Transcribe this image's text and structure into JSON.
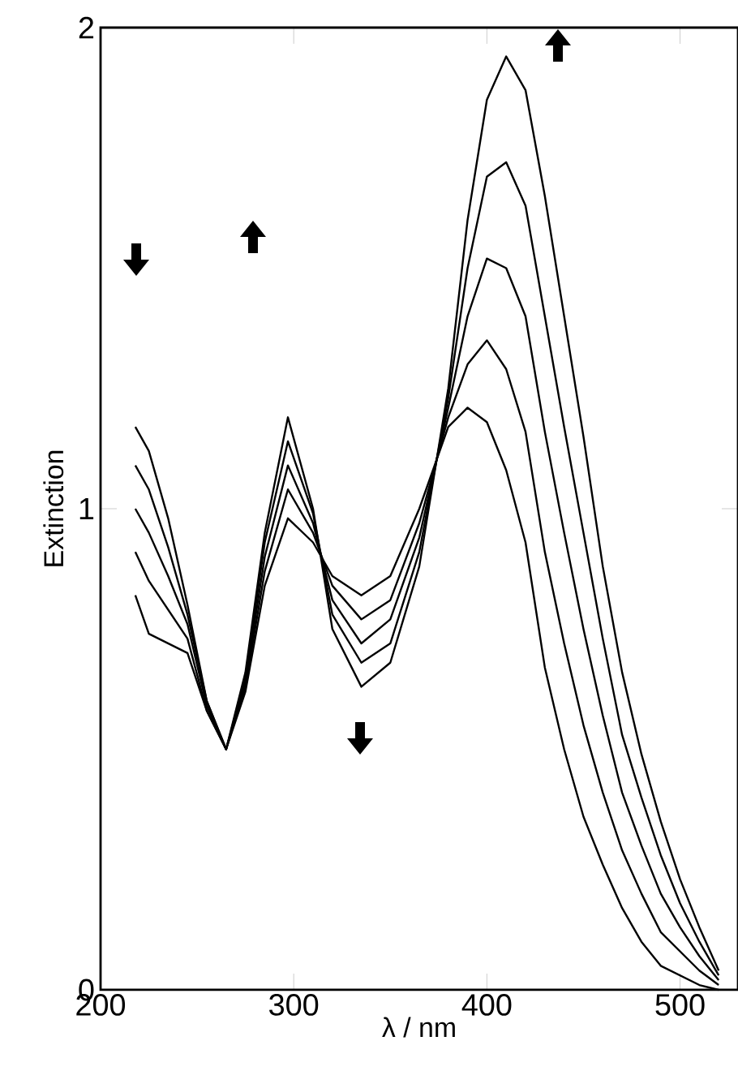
{
  "chart_data": {
    "type": "line",
    "xlabel": "λ / nm",
    "ylabel": "Extinction",
    "xlim": [
      200,
      530
    ],
    "ylim": [
      0,
      2
    ],
    "xticks": [
      200,
      300,
      400,
      500
    ],
    "yticks": [
      0,
      1,
      2
    ],
    "grid": false,
    "marker": "none",
    "line_style": "solid",
    "x": [
      218,
      225,
      235,
      245,
      255,
      265,
      275,
      285,
      297,
      310,
      320,
      335,
      350,
      365,
      380,
      390,
      400,
      410,
      420,
      430,
      440,
      450,
      460,
      470,
      480,
      490,
      500,
      510,
      520
    ],
    "series": [
      {
        "color": "#000000",
        "values": [
          1.17,
          1.12,
          0.98,
          0.8,
          0.6,
          0.5,
          0.62,
          0.84,
          0.98,
          0.93,
          0.86,
          0.82,
          0.86,
          1.0,
          1.17,
          1.21,
          1.18,
          1.08,
          0.93,
          0.67,
          0.5,
          0.36,
          0.26,
          0.17,
          0.1,
          0.05,
          0.03,
          0.01,
          0.0
        ]
      },
      {
        "color": "#000000",
        "values": [
          1.09,
          1.04,
          0.92,
          0.78,
          0.6,
          0.5,
          0.63,
          0.87,
          1.04,
          0.95,
          0.84,
          0.77,
          0.81,
          0.97,
          1.19,
          1.3,
          1.35,
          1.29,
          1.16,
          0.91,
          0.72,
          0.55,
          0.41,
          0.29,
          0.2,
          0.12,
          0.08,
          0.04,
          0.01
        ]
      },
      {
        "color": "#000000",
        "values": [
          1.0,
          0.95,
          0.86,
          0.76,
          0.59,
          0.5,
          0.64,
          0.9,
          1.09,
          0.97,
          0.81,
          0.72,
          0.77,
          0.94,
          1.21,
          1.4,
          1.52,
          1.5,
          1.4,
          1.16,
          0.95,
          0.75,
          0.57,
          0.41,
          0.3,
          0.2,
          0.13,
          0.07,
          0.02
        ]
      },
      {
        "color": "#000000",
        "values": [
          0.91,
          0.85,
          0.79,
          0.73,
          0.58,
          0.5,
          0.65,
          0.93,
          1.14,
          0.99,
          0.78,
          0.68,
          0.72,
          0.91,
          1.23,
          1.5,
          1.69,
          1.72,
          1.63,
          1.4,
          1.17,
          0.95,
          0.73,
          0.53,
          0.4,
          0.28,
          0.18,
          0.1,
          0.03
        ]
      },
      {
        "color": "#000000",
        "values": [
          0.82,
          0.74,
          0.72,
          0.7,
          0.58,
          0.5,
          0.66,
          0.95,
          1.19,
          1.0,
          0.75,
          0.63,
          0.68,
          0.88,
          1.25,
          1.6,
          1.85,
          1.94,
          1.87,
          1.65,
          1.4,
          1.15,
          0.88,
          0.66,
          0.49,
          0.35,
          0.23,
          0.13,
          0.04
        ]
      }
    ]
  }
}
